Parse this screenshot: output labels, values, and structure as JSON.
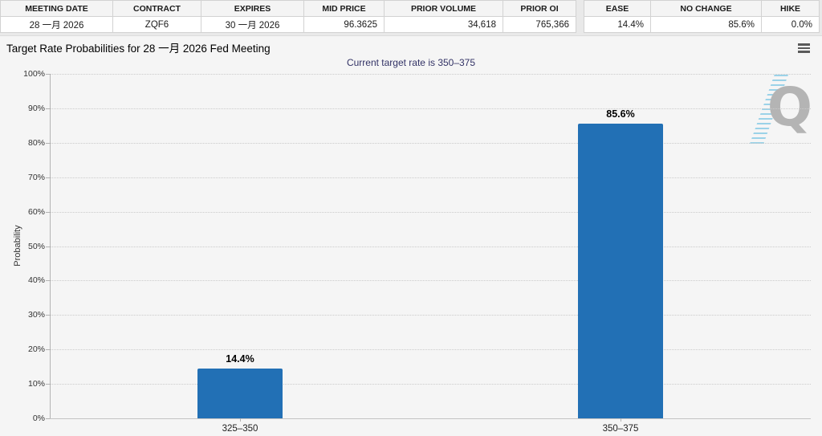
{
  "tables": {
    "left": {
      "columns": [
        {
          "label": "MEETING DATE",
          "value": "28 一月 2026",
          "align": "center"
        },
        {
          "label": "CONTRACT",
          "value": "ZQF6",
          "align": "center"
        },
        {
          "label": "EXPIRES",
          "value": "30 一月 2026",
          "align": "center"
        },
        {
          "label": "MID PRICE",
          "value": "96.3625",
          "align": "right"
        },
        {
          "label": "PRIOR VOLUME",
          "value": "34,618",
          "align": "right"
        },
        {
          "label": "PRIOR OI",
          "value": "765,366",
          "align": "right"
        }
      ]
    },
    "right": {
      "columns": [
        {
          "label": "EASE",
          "value": "14.4%",
          "align": "right"
        },
        {
          "label": "NO CHANGE",
          "value": "85.6%",
          "align": "right"
        },
        {
          "label": "HIKE",
          "value": "0.0%",
          "align": "right"
        }
      ]
    }
  },
  "chart_data": {
    "type": "bar",
    "title": "Target Rate Probabilities for 28 一月 2026 Fed Meeting",
    "subtitle": "Current target rate is 350–375",
    "categories": [
      "325–350",
      "350–375"
    ],
    "values": [
      14.4,
      85.6
    ],
    "data_labels": [
      "14.4%",
      "85.6%"
    ],
    "xlabel": "",
    "ylabel": "Probability",
    "ylim": [
      0,
      100
    ],
    "ytick_step": 10,
    "ytick_labels": [
      "0%",
      "10%",
      "20%",
      "30%",
      "40%",
      "50%",
      "60%",
      "70%",
      "80%",
      "90%",
      "100%"
    ],
    "grid": "horizontal-dotted",
    "legend": "none",
    "bar_color": "#2270b5"
  },
  "watermark": {
    "letter": "Q"
  },
  "colors": {
    "bar": "#2270b5",
    "subtitle_text": "#333366",
    "panel_bg": "#f5f5f5",
    "page_bg": "#e9e9e9"
  }
}
